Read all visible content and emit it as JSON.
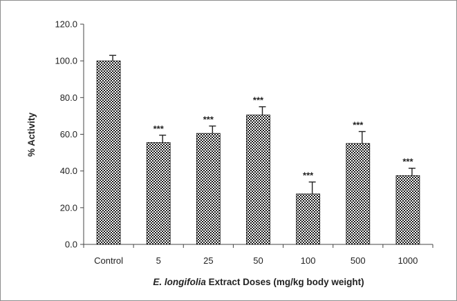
{
  "chart_data": {
    "type": "bar",
    "categories": [
      "Control",
      "5",
      "25",
      "50",
      "100",
      "500",
      "1000"
    ],
    "values": [
      100.0,
      55.5,
      60.5,
      70.5,
      27.5,
      55.0,
      37.5
    ],
    "errors": [
      3.0,
      4.0,
      4.0,
      4.5,
      6.5,
      6.5,
      4.0
    ],
    "significance": [
      "",
      "***",
      "***",
      "***",
      "***",
      "***",
      "***"
    ],
    "ylabel": "% Activity",
    "xlabel_italic": "E. longifolia",
    "xlabel_rest": " Extract Doses (mg/kg body weight)",
    "ylim": [
      0,
      120
    ],
    "yticks": [
      "0.0",
      "20.0",
      "40.0",
      "60.0",
      "80.0",
      "100.0",
      "120.0"
    ],
    "ytick_values": [
      0,
      20,
      40,
      60,
      80,
      100,
      120
    ],
    "grid": false,
    "legend": "none",
    "bar_color": "#2b2b2b",
    "bar_pattern": "checkered"
  }
}
